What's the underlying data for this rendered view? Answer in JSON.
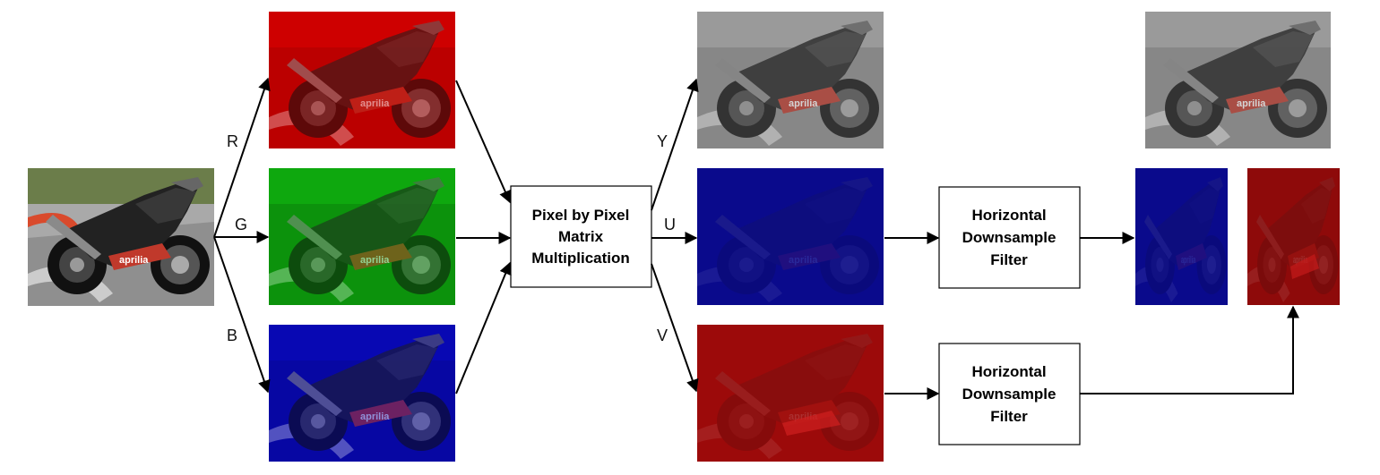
{
  "labels": {
    "r": "R",
    "g": "G",
    "b": "B",
    "y": "Y",
    "u": "U",
    "v": "V"
  },
  "blocks": {
    "matrix": [
      "Pixel by Pixel",
      "Matrix",
      "Multiplication"
    ],
    "downsample_u": [
      "Horizontal",
      "Downsample",
      "Filter"
    ],
    "downsample_v": [
      "Horizontal",
      "Downsample",
      "Filter"
    ]
  },
  "images": {
    "source": "motorcycle-photo",
    "red_channel": "red-channel-image",
    "green_channel": "green-channel-image",
    "blue_channel": "blue-channel-image",
    "y_channel": "luma-grayscale-image",
    "u_channel": "u-chroma-image",
    "v_channel": "v-chroma-image",
    "y_output": "luma-output-image",
    "u_output": "u-downsampled-image",
    "v_output": "v-downsampled-image"
  },
  "colors": {
    "red": "#b40000",
    "green": "#0c8a0c",
    "blue": "#06069c",
    "u_tint": "#0a0a8c",
    "v_tint": "#9c0a0a",
    "gray": "#808080"
  }
}
